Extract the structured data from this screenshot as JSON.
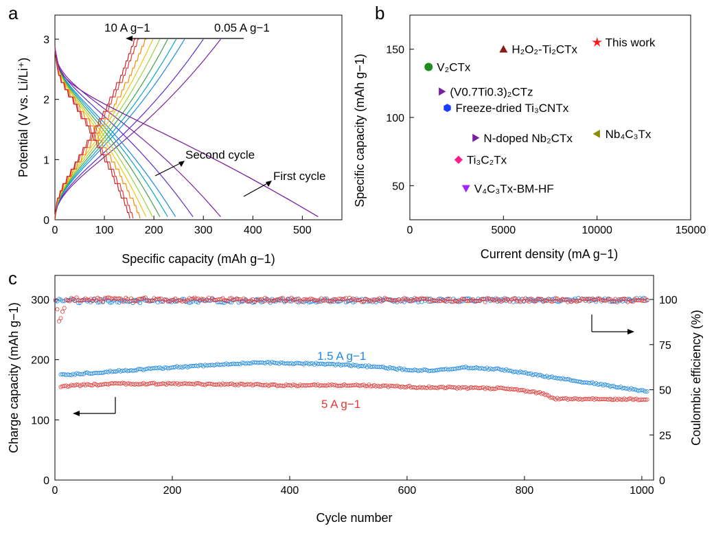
{
  "chart_data": [
    {
      "panel": "a",
      "type": "line",
      "xlabel": "Specific capacity (mAh g−1)",
      "ylabel": "Potential (V vs. Li/Li⁺)",
      "xlim": [
        0,
        580
      ],
      "ylim": [
        0,
        3.4
      ],
      "xticks": [
        0,
        100,
        200,
        300,
        400,
        500
      ],
      "yticks": [
        0,
        1,
        2,
        3
      ],
      "rate_low": "10 A g−1",
      "rate_high": "0.05 A g−1",
      "annotations": [
        "Second cycle",
        "First cycle"
      ],
      "first_cycle": {
        "color": "#7b1fa2",
        "discharge_capacity": 532,
        "charge_capacity": 335
      },
      "charge_series": [
        {
          "rate_rank": 0,
          "color": "#7b1fa2",
          "capacity": 335
        },
        {
          "rate_rank": 1,
          "color": "#5b2bd0",
          "capacity": 300
        },
        {
          "rate_rank": 2,
          "color": "#1e88e5",
          "capacity": 262
        },
        {
          "rate_rank": 3,
          "color": "#00acc1",
          "capacity": 245
        },
        {
          "rate_rank": 4,
          "color": "#43a047",
          "capacity": 228
        },
        {
          "rate_rank": 5,
          "color": "#9bd23b",
          "capacity": 212
        },
        {
          "rate_rank": 6,
          "color": "#f1c40f",
          "capacity": 198
        },
        {
          "rate_rank": 7,
          "color": "#fb8c00",
          "capacity": 185
        },
        {
          "rate_rank": 8,
          "color": "#e53935",
          "capacity": 170
        },
        {
          "rate_rank": 9,
          "color": "#c62828",
          "capacity": 163
        }
      ]
    },
    {
      "panel": "b",
      "type": "scatter",
      "xlabel": "Current density (mA g−1)",
      "ylabel": "Specific capacity (mAh g−1)",
      "xlim": [
        0,
        15000
      ],
      "ylim": [
        25,
        175
      ],
      "xticks": [
        0,
        5000,
        10000,
        15000
      ],
      "yticks": [
        50,
        100,
        150
      ],
      "points": [
        {
          "name": "This work",
          "x": 10000,
          "y": 155,
          "marker": "star",
          "color": "#ff1a1a"
        },
        {
          "name": "H₂O₂-Ti₂CTx",
          "x": 5000,
          "y": 150,
          "marker": "triangle-up",
          "color": "#8b1a1a"
        },
        {
          "name": "V₂CTx",
          "x": 1000,
          "y": 137,
          "marker": "circle",
          "color": "#1e8c1e"
        },
        {
          "name": "(V0.7Ti0.3)₂CTz",
          "x": 1700,
          "y": 119,
          "marker": "triangle-right",
          "color": "#7b1fa2"
        },
        {
          "name": "Freeze-dried Ti₃CNTx",
          "x": 2000,
          "y": 107,
          "marker": "hexagon",
          "color": "#1a3cff"
        },
        {
          "name": "N-doped Nb₂CTx",
          "x": 3500,
          "y": 85,
          "marker": "triangle-right",
          "color": "#7b1fa2"
        },
        {
          "name": "Nb₄C₃Tx",
          "x": 10000,
          "y": 88,
          "marker": "triangle-left",
          "color": "#8b8b00"
        },
        {
          "name": "Ti₃C₂Tx",
          "x": 2600,
          "y": 69,
          "marker": "diamond",
          "color": "#ff1a8c"
        },
        {
          "name": "V₄C₃Tx-BM-HF",
          "x": 3000,
          "y": 48,
          "marker": "triangle-down",
          "color": "#9c27ff"
        }
      ]
    },
    {
      "panel": "c",
      "type": "scatter",
      "xlabel": "Cycle number",
      "ylabel": "Charge capacity (mAh g−1)",
      "y2label": "Coulombic efficiency (%)",
      "xlim": [
        0,
        1020
      ],
      "ylim": [
        0,
        340
      ],
      "y2lim": [
        0,
        113.33
      ],
      "xticks": [
        0,
        200,
        400,
        600,
        800,
        1000
      ],
      "yticks": [
        0,
        100,
        200,
        300
      ],
      "y2ticks": [
        0,
        25,
        50,
        75,
        100
      ],
      "series": [
        {
          "name": "1.5 A g−1",
          "color": "#1e88e5",
          "capacity_profile": [
            [
              10,
              174
            ],
            [
              100,
              181
            ],
            [
              200,
              187
            ],
            [
              300,
              193
            ],
            [
              360,
              195
            ],
            [
              450,
              193
            ],
            [
              550,
              188
            ],
            [
              600,
              183
            ],
            [
              650,
              182
            ],
            [
              700,
              187
            ],
            [
              760,
              184
            ],
            [
              850,
              170
            ],
            [
              950,
              156
            ],
            [
              1010,
              147
            ]
          ],
          "ce_profile": [
            [
              1,
              100
            ],
            [
              10,
              99
            ],
            [
              1010,
              99.8
            ]
          ]
        },
        {
          "name": "5 A g−1",
          "color": "#e53935",
          "capacity_profile": [
            [
              10,
              156
            ],
            [
              100,
              160
            ],
            [
              200,
              160
            ],
            [
              300,
              159
            ],
            [
              400,
              157
            ],
            [
              500,
              158
            ],
            [
              600,
              155
            ],
            [
              700,
              153
            ],
            [
              780,
              152
            ],
            [
              830,
              144
            ],
            [
              850,
              135
            ],
            [
              1010,
              134
            ]
          ],
          "ce_profile": [
            [
              1,
              99
            ],
            [
              8,
              87
            ],
            [
              20,
              100
            ],
            [
              1010,
              99.5
            ]
          ]
        }
      ]
    }
  ],
  "panels": {
    "a": {
      "label": "a"
    },
    "b": {
      "label": "b"
    },
    "c": {
      "label": "c"
    }
  }
}
